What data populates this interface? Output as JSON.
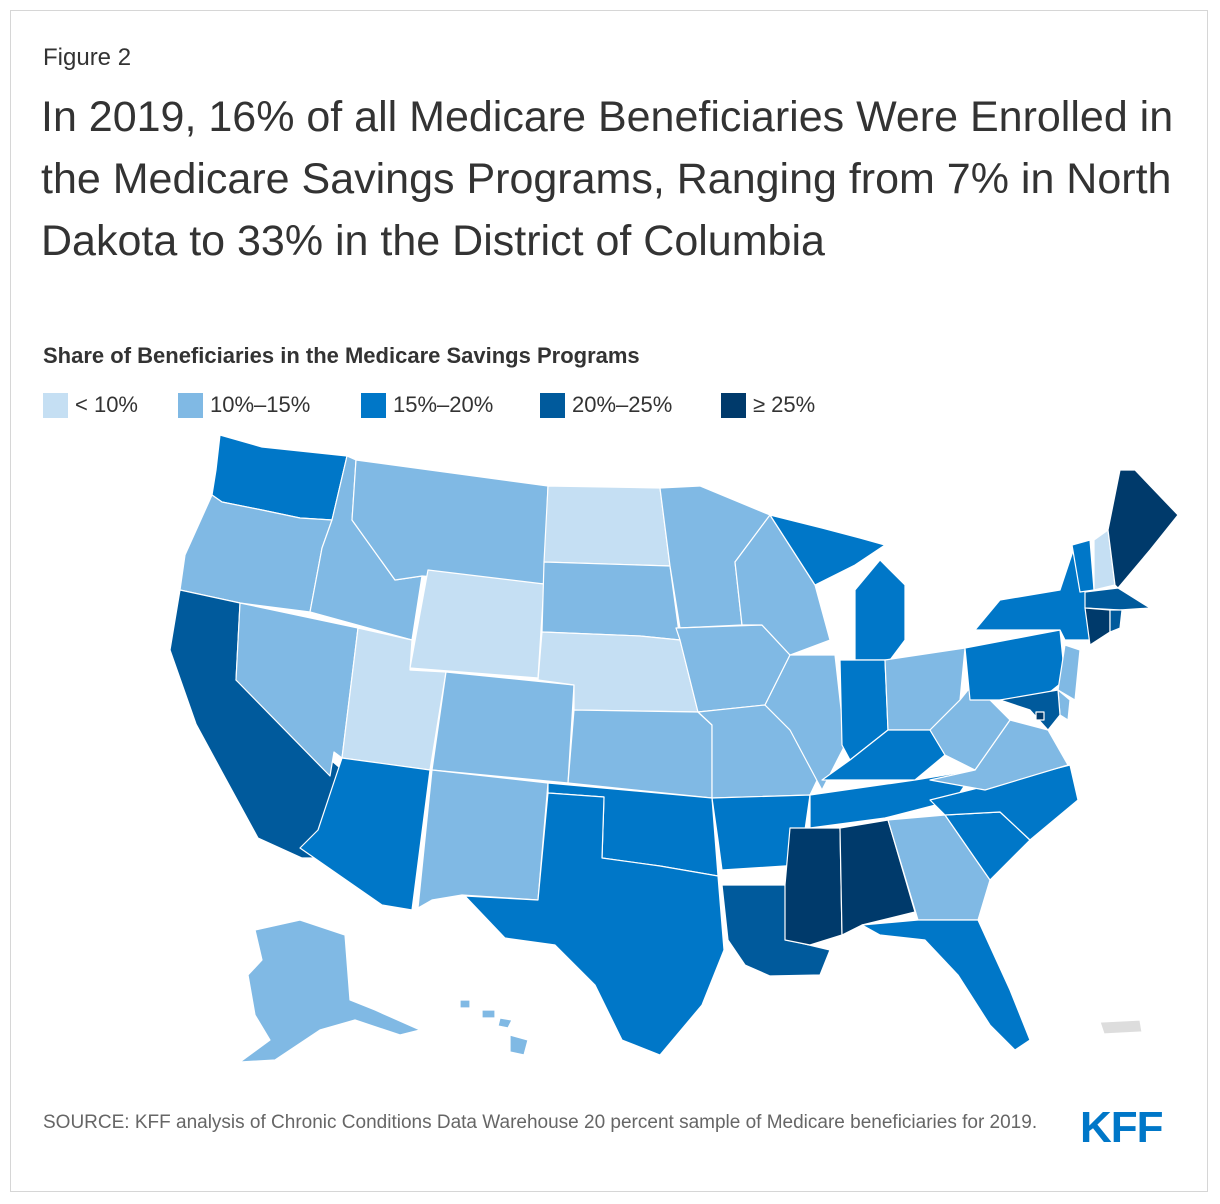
{
  "header": {
    "figure_label": "Figure 2",
    "title": "In 2019, 16% of all Medicare Beneficiaries Were Enrolled in the Medicare Savings Programs, Ranging from 7% in North Dakota to 33% in the District of Columbia"
  },
  "legend": {
    "title": "Share of Beneficiaries in the Medicare Savings Programs",
    "items": [
      {
        "label": "< 10%",
        "color": "#c5dff3"
      },
      {
        "label": "10%–15%",
        "color": "#80b9e4"
      },
      {
        "label": "15%–20%",
        "color": "#0077c8"
      },
      {
        "label": "20%–25%",
        "color": "#005a9c"
      },
      {
        "label": "≥ 25%",
        "color": "#003a6b"
      }
    ]
  },
  "map": {
    "no_data_color": "#dddddd",
    "bins": {
      "WA": 2,
      "OR": 1,
      "CA": 3,
      "ID": 1,
      "NV": 1,
      "UT": 0,
      "AZ": 2,
      "MT": 1,
      "WY": 0,
      "CO": 1,
      "NM": 1,
      "ND": 0,
      "SD": 1,
      "NE": 0,
      "KS": 1,
      "OK": 2,
      "TX": 2,
      "MN": 1,
      "IA": 1,
      "MO": 1,
      "AR": 2,
      "LA": 3,
      "WI": 1,
      "IL": 1,
      "MS": 4,
      "MI": 2,
      "IN": 2,
      "OH": 1,
      "KY": 2,
      "TN": 2,
      "AL": 4,
      "GA": 1,
      "FL": 2,
      "SC": 2,
      "NC": 2,
      "VA": 1,
      "WV": 1,
      "PA": 2,
      "NY": 2,
      "VT": 2,
      "NH": 0,
      "ME": 4,
      "MA": 3,
      "RI": 3,
      "CT": 4,
      "NJ": 1,
      "DE": 1,
      "MD": 3,
      "DC": 4,
      "AK": 1,
      "HI": 1,
      "PR": null
    }
  },
  "footer": {
    "source": "SOURCE: KFF analysis of Chronic Conditions Data Warehouse 20 percent sample of Medicare beneficiaries for 2019.",
    "logo": "KFF"
  }
}
